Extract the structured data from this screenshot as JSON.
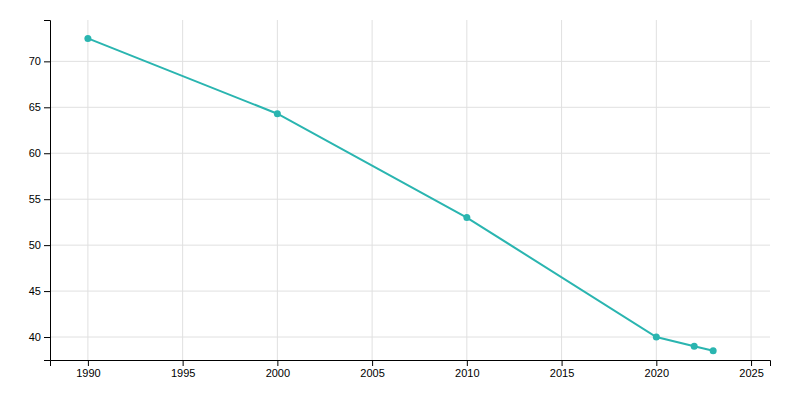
{
  "chart_data": {
    "type": "line",
    "x": [
      1990,
      2000,
      2010,
      2020,
      2022,
      2023
    ],
    "values": [
      72.5,
      64.3,
      53.0,
      40.0,
      39.0,
      38.5
    ],
    "color": "#2ab5b0",
    "marker": "circle",
    "xlim": [
      1988,
      2026
    ],
    "ylim": [
      37.5,
      74.5
    ],
    "xticks": [
      1990,
      1995,
      2000,
      2005,
      2010,
      2015,
      2020,
      2025
    ],
    "yticks": [
      40,
      45,
      50,
      55,
      60,
      65,
      70
    ],
    "grid": true
  }
}
